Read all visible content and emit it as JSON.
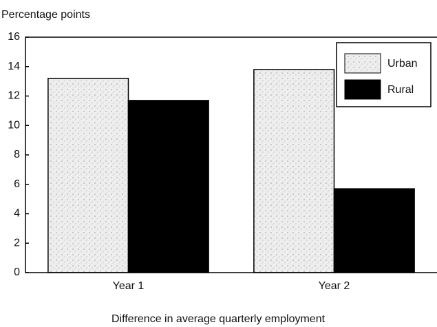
{
  "chart_data": {
    "type": "bar",
    "y_label": "Percentage points",
    "x_label": "Difference in average quarterly employment",
    "categories": [
      "Year 1",
      "Year 2"
    ],
    "series": [
      {
        "name": "Urban",
        "color": "#e6e6e6",
        "values": [
          13.2,
          13.8
        ]
      },
      {
        "name": "Rural",
        "color": "#000000",
        "values": [
          11.7,
          5.7
        ]
      }
    ],
    "ylim": [
      0,
      16
    ],
    "yticks": [
      0,
      2,
      4,
      6,
      8,
      10,
      12,
      14,
      16
    ],
    "legend": "upper right"
  }
}
